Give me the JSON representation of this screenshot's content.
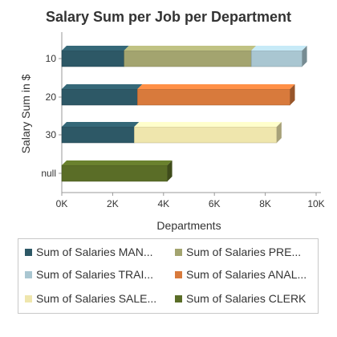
{
  "chart_data": {
    "type": "bar",
    "orientation": "horizontal",
    "stacked": true,
    "title": "Salary Sum per Job per Department",
    "xlabel": "Departments",
    "ylabel": "Salary Sum in $",
    "xlim": [
      0,
      10000
    ],
    "x_ticks": [
      "0K",
      "2K",
      "4K",
      "6K",
      "8K",
      "10K"
    ],
    "categories": [
      "10",
      "20",
      "30",
      "null"
    ],
    "series": [
      {
        "name": "Sum of Salaries MAN...",
        "color": "#2d5866",
        "values": [
          2450,
          2975,
          2850,
          null
        ]
      },
      {
        "name": "Sum of Salaries PRE...",
        "color": "#a3a46f",
        "values": [
          5000,
          null,
          null,
          null
        ]
      },
      {
        "name": "Sum of Salaries TRAI...",
        "color": "#a9c6d1",
        "values": [
          2000,
          null,
          null,
          null
        ]
      },
      {
        "name": "Sum of Salaries ANAL...",
        "color": "#d87a3c",
        "values": [
          null,
          6000,
          null,
          null
        ]
      },
      {
        "name": "Sum of Salaries SALE...",
        "color": "#efe6ad",
        "values": [
          null,
          null,
          5600,
          null
        ]
      },
      {
        "name": "Sum of Salaries CLERK",
        "color": "#5a6d27",
        "values": [
          null,
          null,
          null,
          4150
        ]
      }
    ],
    "grid": false,
    "legend_position": "bottom"
  }
}
